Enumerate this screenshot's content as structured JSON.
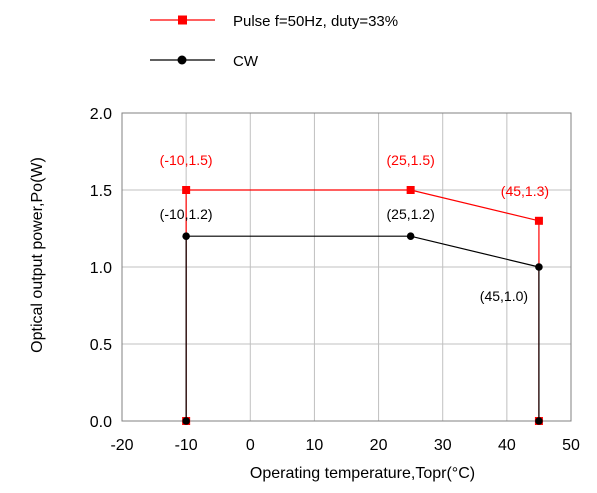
{
  "chart_data": {
    "type": "line",
    "title": "",
    "xlabel": "Operating temperature,Topr(°C)",
    "ylabel": "Optical output power,Po(W)",
    "xlim": [
      -20,
      50
    ],
    "ylim": [
      0.0,
      2.0
    ],
    "x_ticks": [
      "-20",
      "-10",
      "0",
      "10",
      "20",
      "30",
      "40",
      "50"
    ],
    "x_tick_values": [
      -20,
      -10,
      0,
      10,
      20,
      30,
      40,
      50
    ],
    "y_ticks": [
      "0.0",
      "0.5",
      "1.0",
      "1.5",
      "2.0"
    ],
    "y_tick_values": [
      0.0,
      0.5,
      1.0,
      1.5,
      2.0
    ],
    "grid": true,
    "legend_position": "top",
    "series": [
      {
        "name": "Pulse f=50Hz, duty=33%",
        "color": "#ff0000",
        "marker": "square",
        "points": [
          {
            "x": -10,
            "y": 0.0
          },
          {
            "x": -10,
            "y": 1.5
          },
          {
            "x": 25,
            "y": 1.5
          },
          {
            "x": 45,
            "y": 1.3
          },
          {
            "x": 45,
            "y": 0.0
          }
        ],
        "annotations": [
          "(-10,1.5)",
          "(25,1.5)",
          "(45,1.3)"
        ]
      },
      {
        "name": "CW",
        "color": "#000000",
        "marker": "circle",
        "points": [
          {
            "x": -10,
            "y": 0.0
          },
          {
            "x": -10,
            "y": 1.2
          },
          {
            "x": 25,
            "y": 1.2
          },
          {
            "x": 45,
            "y": 1.0
          },
          {
            "x": 45,
            "y": 0.0
          }
        ],
        "annotations": [
          "(-10,1.2)",
          "(25,1.2)",
          "(45,1.0)"
        ]
      }
    ]
  }
}
